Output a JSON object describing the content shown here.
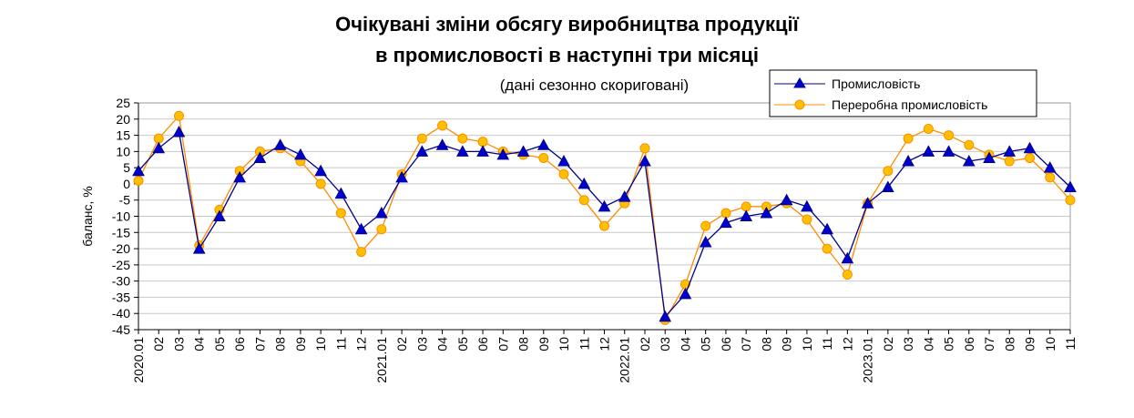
{
  "chart_data": {
    "type": "line",
    "title_line1": "Очікувані зміни обсягу виробництва продукції",
    "title_line2": "в промисловості в наступні три місяці",
    "subtitle": "(дані сезонно скориговані)",
    "ylabel": "баланс, %",
    "ylim": [
      -45,
      25
    ],
    "ytick_step": 5,
    "grid": true,
    "legend_position": "top-right",
    "x": [
      "2020.01",
      "02",
      "03",
      "04",
      "05",
      "06",
      "07",
      "08",
      "09",
      "10",
      "11",
      "12",
      "2021.01",
      "02",
      "03",
      "04",
      "05",
      "06",
      "07",
      "08",
      "09",
      "10",
      "11",
      "12",
      "2022.01",
      "02",
      "03",
      "04",
      "05",
      "06",
      "07",
      "08",
      "09",
      "10",
      "11",
      "12",
      "2023.01",
      "02",
      "03",
      "04",
      "05",
      "06",
      "07",
      "08",
      "09",
      "10",
      "11"
    ],
    "series": [
      {
        "name": "Промисловість",
        "color": "#00008B",
        "marker_color": "#0000CC",
        "marker": "triangle",
        "values": [
          4,
          11,
          16,
          -20,
          -10,
          2,
          8,
          12,
          9,
          4,
          -3,
          -14,
          -9,
          2,
          10,
          12,
          10,
          10,
          9,
          10,
          12,
          7,
          0,
          -7,
          -4,
          7,
          -41,
          -34,
          -18,
          -12,
          -10,
          -9,
          -5,
          -7,
          -14,
          -23,
          -6,
          -1,
          7,
          10,
          10,
          7,
          8,
          10,
          11,
          5,
          -1
        ]
      },
      {
        "name": "Переробна промисловість",
        "color": "#FF8C00",
        "marker_color": "#FFC000",
        "marker": "circle",
        "values": [
          1,
          14,
          21,
          -19,
          -8,
          4,
          10,
          11,
          7,
          0,
          -9,
          -21,
          -14,
          3,
          14,
          18,
          14,
          13,
          10,
          9,
          8,
          3,
          -5,
          -13,
          -6,
          11,
          -42,
          -31,
          -13,
          -9,
          -7,
          -7,
          -6,
          -11,
          -20,
          -28,
          -6,
          4,
          14,
          17,
          15,
          12,
          9,
          7,
          8,
          2,
          -5
        ]
      }
    ]
  }
}
